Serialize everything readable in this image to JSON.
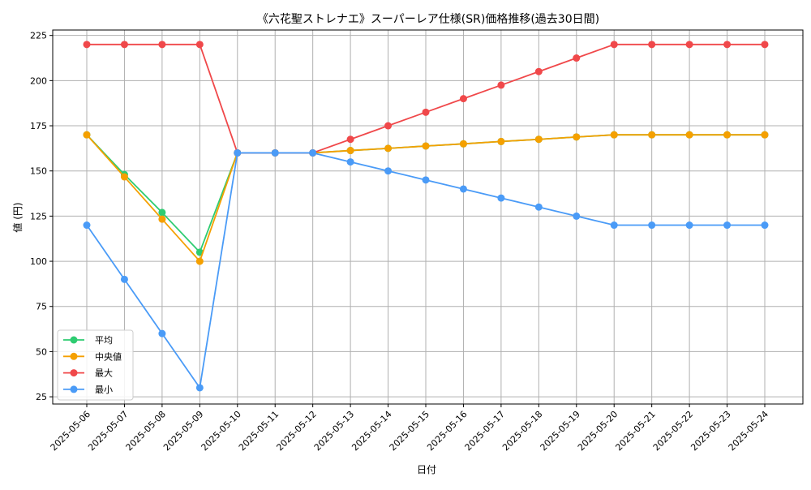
{
  "chart_data": {
    "type": "line",
    "title": "《六花聖ストレナエ》スーパーレア仕様(SR)価格推移(過去30日間)",
    "xlabel": "日付",
    "ylabel": "値 (円)",
    "ylim": [
      21,
      228
    ],
    "yticks": [
      25,
      50,
      75,
      100,
      125,
      150,
      175,
      200,
      225
    ],
    "grid": true,
    "legend_position": "lower-left",
    "categories": [
      "2025-05-06",
      "2025-05-07",
      "2025-05-08",
      "2025-05-09",
      "2025-05-10",
      "2025-05-11",
      "2025-05-12",
      "2025-05-13",
      "2025-05-14",
      "2025-05-15",
      "2025-05-16",
      "2025-05-17",
      "2025-05-18",
      "2025-05-19",
      "2025-05-20",
      "2025-05-21",
      "2025-05-22",
      "2025-05-23",
      "2025-05-24"
    ],
    "series": [
      {
        "name": "平均",
        "color": "#2ecc71",
        "values": [
          170,
          148,
          127,
          105,
          160,
          160,
          160,
          161.3,
          162.5,
          163.8,
          165,
          166.3,
          167.5,
          168.8,
          170,
          170,
          170,
          170,
          170
        ]
      },
      {
        "name": "中央値",
        "color": "#f5a000",
        "values": [
          170,
          146.7,
          123.3,
          100,
          160,
          160,
          160,
          161.3,
          162.5,
          163.8,
          165,
          166.3,
          167.5,
          168.8,
          170,
          170,
          170,
          170,
          170
        ]
      },
      {
        "name": "最大",
        "color": "#f0484a",
        "values": [
          220,
          220,
          220,
          220,
          160,
          160,
          160,
          167.5,
          175,
          182.5,
          190,
          197.5,
          205,
          212.5,
          220,
          220,
          220,
          220,
          220
        ]
      },
      {
        "name": "最小",
        "color": "#4a9bf7",
        "values": [
          120,
          90,
          60,
          30,
          160,
          160,
          160,
          155,
          150,
          145,
          140,
          135,
          130,
          125,
          120,
          120,
          120,
          120,
          120
        ]
      }
    ]
  }
}
